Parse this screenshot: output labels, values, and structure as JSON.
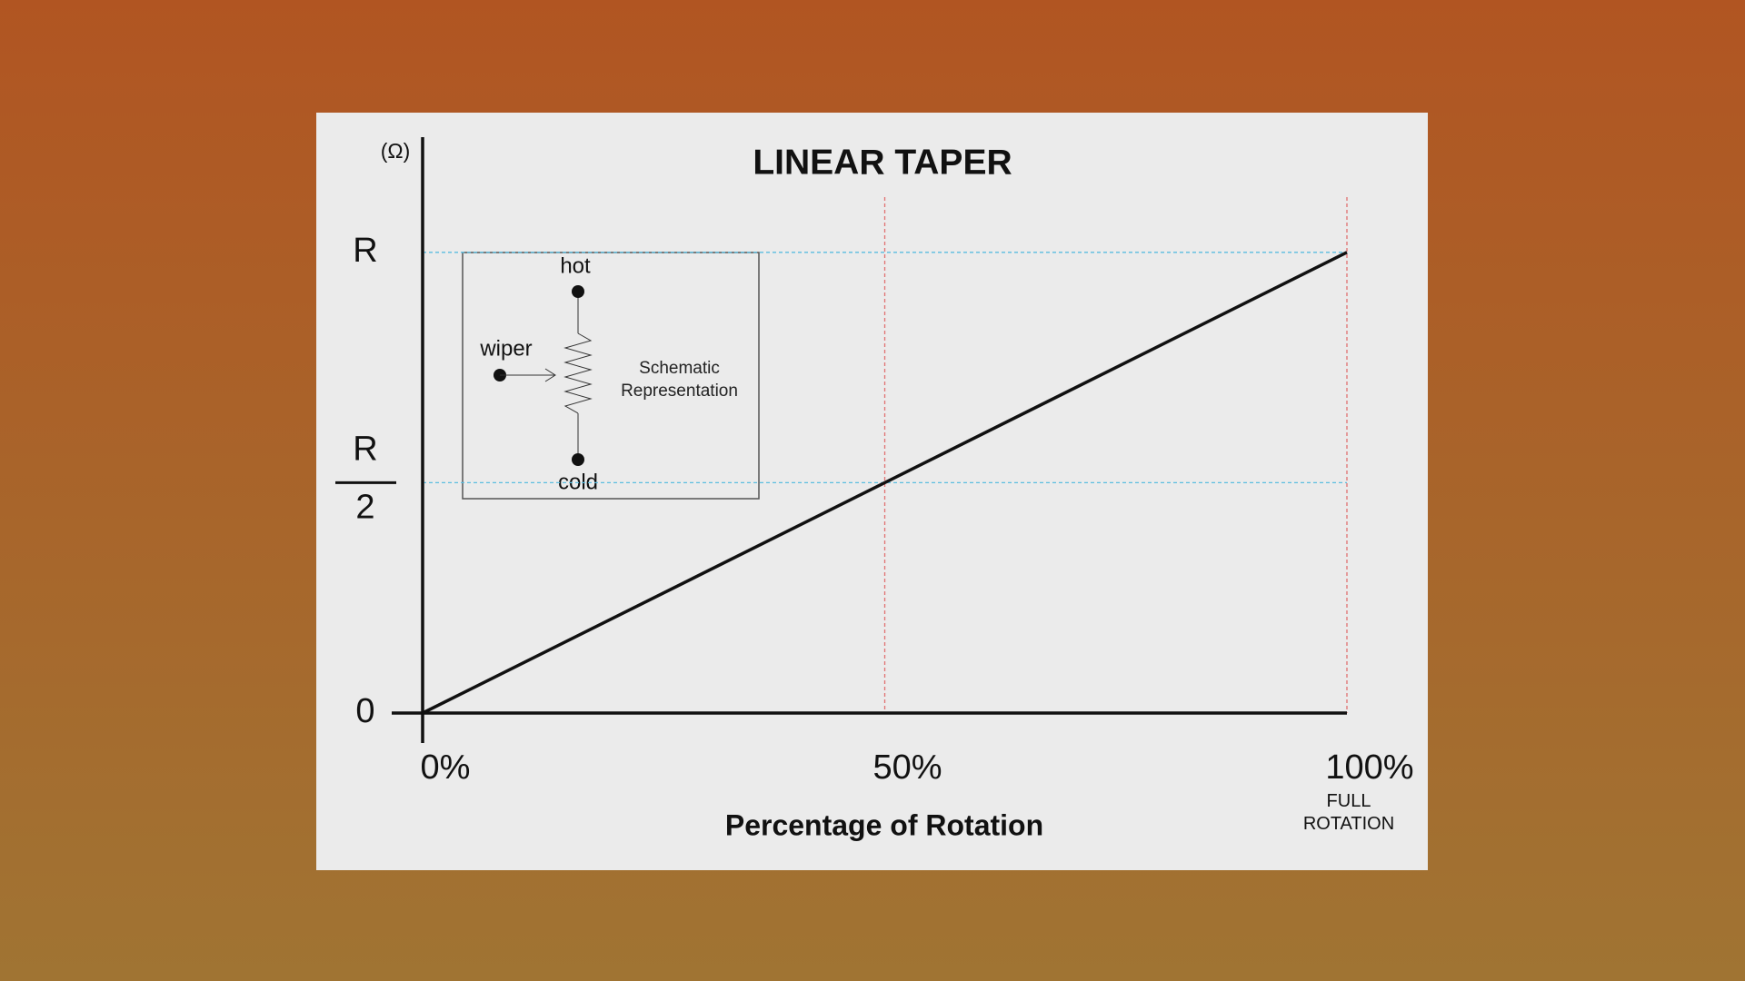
{
  "chart_data": {
    "type": "line",
    "title": "LINEAR TAPER",
    "y_unit": "(Ω)",
    "x_label": "Percentage of Rotation",
    "x_annotation": "FULL ROTATION",
    "x": [
      0,
      100
    ],
    "values": [
      0,
      1
    ],
    "color": "#111111",
    "xlim": [
      0,
      100
    ],
    "ylim": [
      0,
      1.25
    ],
    "xticks": [
      {
        "value": 0,
        "label": "0%"
      },
      {
        "value": 50,
        "label": "50%"
      },
      {
        "value": 100,
        "label": "100%"
      }
    ],
    "yticks": [
      0,
      {
        "value": 0.5,
        "label": [
          "R",
          "2"
        ]
      },
      {
        "value": 1,
        "label": "R"
      }
    ],
    "grid": true,
    "hgrid_color": "#5bbde0",
    "vgrid_color": "#e07070",
    "inset": {
      "hot": "hot",
      "wiper": "wiper",
      "cold": "cold",
      "caption": "Schematic Representation"
    }
  }
}
